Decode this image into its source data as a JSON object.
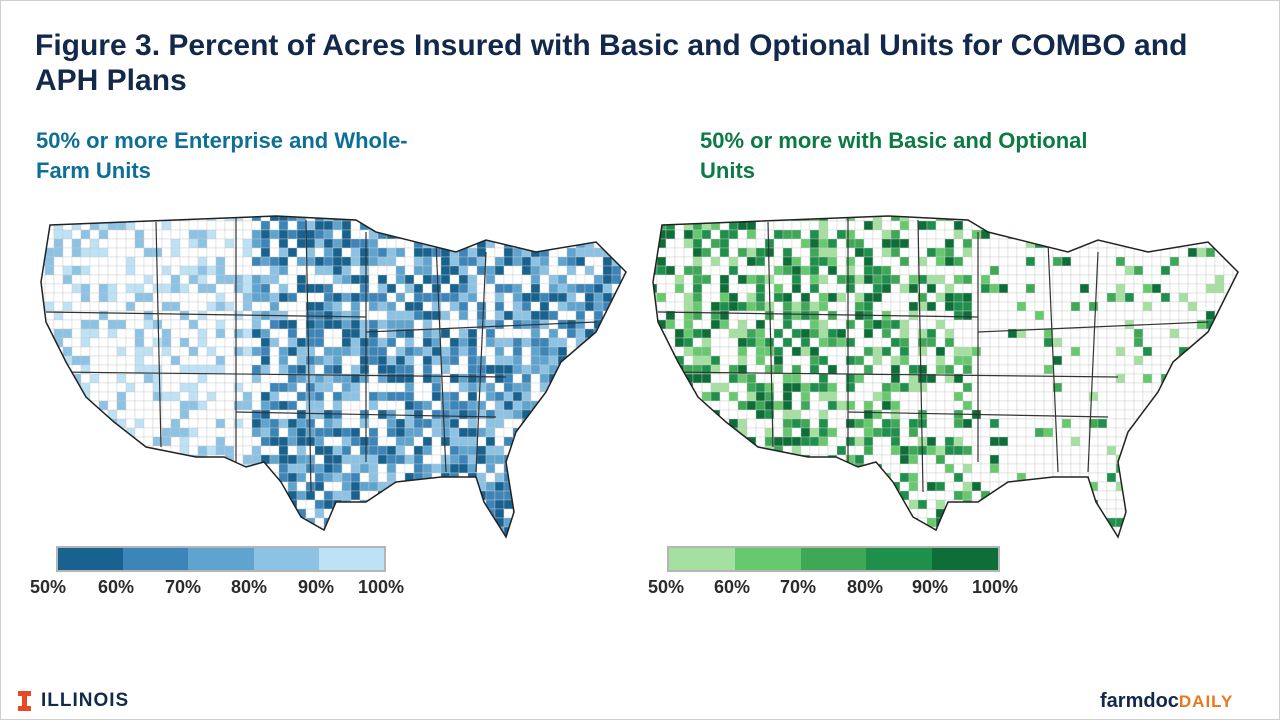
{
  "title": "Figure 3. Percent of Acres Insured with Basic and Optional Units for COMBO and APH Plans",
  "panels": [
    {
      "subtitle": "50%  or more Enterprise and Whole-Farm Units",
      "colors": [
        "#17628f",
        "#3c85b8",
        "#5ea4cf",
        "#8cc2e4",
        "#bde2f5"
      ],
      "legend_ticks": [
        "50%",
        "60%",
        "70%",
        "80%",
        "90%",
        "100%"
      ]
    },
    {
      "subtitle": "50%  or more with Basic and Optional Units",
      "colors": [
        "#a6e0a0",
        "#67c96e",
        "#3ea857",
        "#1f8f4c",
        "#0d6e38"
      ],
      "legend_ticks": [
        "50%",
        "60%",
        "70%",
        "80%",
        "90%",
        "100%"
      ]
    }
  ],
  "footer": {
    "left_logo_text": "ILLINOIS",
    "right_logo_text": "farmdoc",
    "right_logo_suffix": "DAILY"
  }
}
